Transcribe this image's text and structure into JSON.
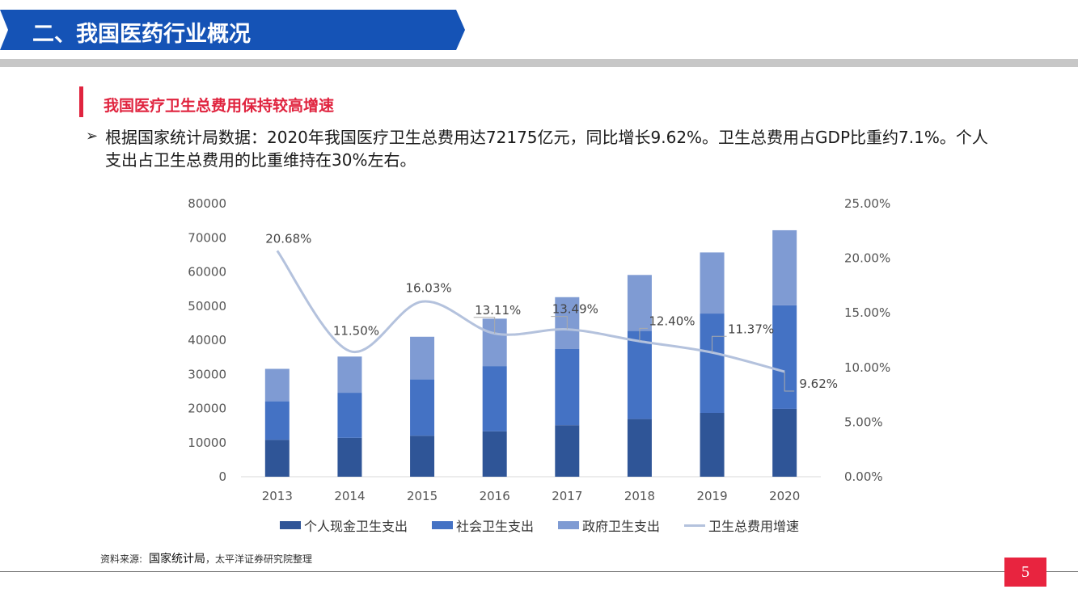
{
  "header": {
    "title": "二、我国医药行业概况"
  },
  "section": {
    "subtitle": "我国医疗卫生总费用保持较高增速",
    "bullet_marker": "➢",
    "bullet_text": "根据国家统计局数据：2020年我国医疗卫生总费用达72175亿元，同比增长9.62%。卫生总费用占GDP比重约7.1%。个人支出占卫生总费用的比重维持在30%左右。"
  },
  "colors": {
    "banner": "#1553b6",
    "accent_red": "#e0243f",
    "series_personal": "#2f5597",
    "series_social": "#4472c4",
    "series_gov": "#7f9bd3",
    "series_growth": "#b4c2dd"
  },
  "chart_data": {
    "type": "bar",
    "stacked": true,
    "title": "",
    "categories": [
      "2013",
      "2014",
      "2015",
      "2016",
      "2017",
      "2018",
      "2019",
      "2020"
    ],
    "series": [
      {
        "name": "个人现金卫生支出",
        "axis": "left",
        "values": [
          10800,
          11400,
          12000,
          13300,
          15100,
          16900,
          18700,
          19900
        ]
      },
      {
        "name": "社会卫生支出",
        "axis": "left",
        "values": [
          11300,
          13200,
          16500,
          19100,
          22300,
          25800,
          29100,
          30300
        ]
      },
      {
        "name": "政府卫生支出",
        "axis": "left",
        "values": [
          9500,
          10600,
          12500,
          13900,
          15200,
          16400,
          17900,
          22000
        ]
      },
      {
        "name": "卫生总费用增速",
        "type": "line",
        "axis": "right",
        "values": [
          20.68,
          11.5,
          16.03,
          13.11,
          13.49,
          12.4,
          11.37,
          9.62
        ]
      }
    ],
    "growth_labels": [
      "20.68%",
      "11.50%",
      "16.03%",
      "13.11%",
      "13.49%",
      "12.40%",
      "11.37%",
      "9.62%"
    ],
    "y_left": {
      "range": [
        0,
        80000
      ],
      "ticks": [
        "0",
        "10000",
        "20000",
        "30000",
        "40000",
        "50000",
        "60000",
        "70000",
        "80000"
      ]
    },
    "y_right": {
      "range": [
        0,
        25
      ],
      "ticks": [
        "0.00%",
        "5.00%",
        "10.00%",
        "15.00%",
        "20.00%",
        "25.00%"
      ]
    },
    "legend": [
      "个人现金卫生支出",
      "社会卫生支出",
      "政府卫生支出",
      "卫生总费用增速"
    ],
    "legend_position": "bottom",
    "grid": false
  },
  "footer": {
    "source_label": "资料来源:",
    "source_name": "国家统计局",
    "source_rest": "，太平洋证券研究院整理",
    "page_number": "5"
  }
}
